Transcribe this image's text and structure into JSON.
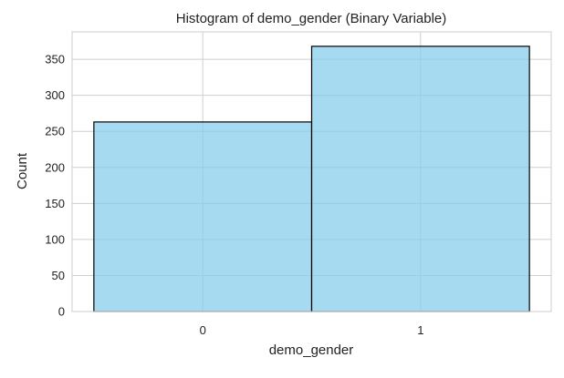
{
  "chart_data": {
    "type": "bar",
    "title": "Histogram of demo_gender (Binary Variable)",
    "xlabel": "demo_gender",
    "ylabel": "Count",
    "categories": [
      "0",
      "1"
    ],
    "values": [
      263,
      368
    ],
    "ylim": [
      0,
      388
    ],
    "y_ticks": [
      0,
      50,
      100,
      150,
      200,
      250,
      300,
      350
    ],
    "grid": true,
    "legend": "none",
    "colors": {
      "bar_fill": "#87ceeb",
      "bar_stroke": "#000000",
      "grid": "#cfcfcf",
      "axes_edge": "#cccccc"
    }
  }
}
